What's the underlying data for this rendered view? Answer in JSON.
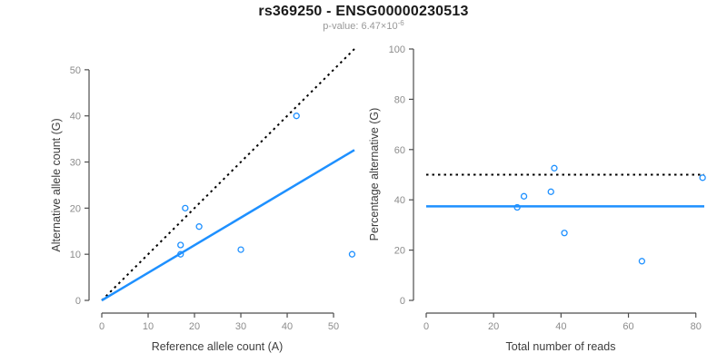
{
  "header": {
    "title": "rs369250 - ENSG00000230513",
    "pvalue_label": "p-value: 6.47×10",
    "pvalue_exponent": "-6"
  },
  "colors": {
    "accent_blue": "#1E90FF",
    "dotted_black": "#000000",
    "axis": "#4d4d4d",
    "tick_label": "#8c8c8c",
    "axis_title": "#3d3d3d",
    "title": "#1a1a1a",
    "subtitle": "#999999",
    "background": "#ffffff"
  },
  "chart_data": [
    {
      "type": "scatter",
      "panel": "left",
      "xlabel": "Reference allele count (A)",
      "ylabel": "Alternative allele count (G)",
      "xlim": [
        0,
        54.5
      ],
      "ylim": [
        0,
        54.5
      ],
      "x_ticks": [
        0,
        10,
        20,
        30,
        40,
        50
      ],
      "y_ticks": [
        0,
        10,
        20,
        30,
        40,
        50
      ],
      "grid": false,
      "legend": "none",
      "points": [
        {
          "x": 17,
          "y": 10
        },
        {
          "x": 17,
          "y": 12
        },
        {
          "x": 18,
          "y": 20
        },
        {
          "x": 21,
          "y": 16
        },
        {
          "x": 30,
          "y": 11
        },
        {
          "x": 42,
          "y": 40
        },
        {
          "x": 54,
          "y": 10
        }
      ],
      "lines": [
        {
          "name": "identity-line",
          "style": "dotted",
          "color": "black",
          "x": [
            0,
            54.5
          ],
          "y": [
            0,
            54.5
          ]
        },
        {
          "name": "fitted-ratio-line",
          "style": "solid",
          "color": "blue",
          "x": [
            0,
            54.5
          ],
          "y": [
            0,
            32.6
          ]
        }
      ]
    },
    {
      "type": "scatter",
      "panel": "right",
      "xlabel": "Total number of reads",
      "ylabel": "Percentage alternative (G)",
      "xlim": [
        0,
        82.5
      ],
      "ylim": [
        0,
        100
      ],
      "x_ticks": [
        0,
        20,
        40,
        60,
        80
      ],
      "y_ticks": [
        0,
        20,
        40,
        60,
        80,
        100
      ],
      "grid": false,
      "legend": "none",
      "points": [
        {
          "x": 27,
          "y": 37.0
        },
        {
          "x": 29,
          "y": 41.4
        },
        {
          "x": 37,
          "y": 43.2
        },
        {
          "x": 38,
          "y": 52.6
        },
        {
          "x": 41,
          "y": 26.8
        },
        {
          "x": 64,
          "y": 15.6
        },
        {
          "x": 82,
          "y": 48.8
        }
      ],
      "lines": [
        {
          "name": "null-50-percent-line",
          "style": "dotted",
          "color": "black",
          "x": [
            0,
            82.5
          ],
          "y": [
            50,
            50
          ]
        },
        {
          "name": "mean-percentage-line",
          "style": "solid",
          "color": "blue",
          "x": [
            0,
            82.5
          ],
          "y": [
            37.4,
            37.4
          ]
        }
      ]
    }
  ]
}
